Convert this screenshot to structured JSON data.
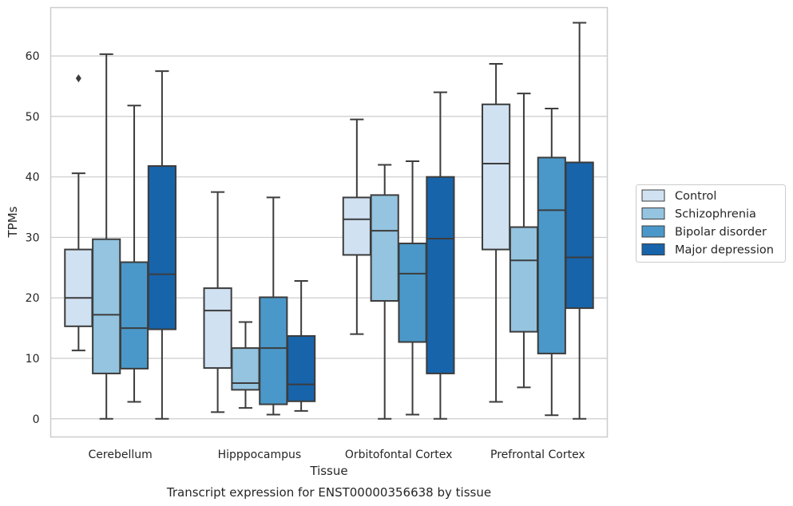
{
  "chart_data": {
    "type": "box",
    "title": "",
    "xlabel": "Tissue",
    "ylabel": "TPMs",
    "caption": "Transcript expression for ENST00000356638 by tissue",
    "categories": [
      "Cerebellum",
      "Hipppocampus",
      "Orbitofontal Cortex",
      "Prefrontal Cortex"
    ],
    "ylim": [
      -3,
      68
    ],
    "yticks": [
      0,
      10,
      20,
      30,
      40,
      50,
      60
    ],
    "grid": true,
    "legend_position": "right",
    "series": [
      {
        "name": "Control",
        "color": "#d0e1f2",
        "boxes": [
          {
            "whislo": 11.3,
            "q1": 15.3,
            "med": 20.0,
            "q3": 28.0,
            "whishi": 40.6,
            "fliers": [
              56.3
            ]
          },
          {
            "whislo": 1.1,
            "q1": 8.4,
            "med": 17.9,
            "q3": 21.6,
            "whishi": 37.5,
            "fliers": []
          },
          {
            "whislo": 14.0,
            "q1": 27.1,
            "med": 33.0,
            "q3": 36.6,
            "whishi": 49.5,
            "fliers": []
          },
          {
            "whislo": 2.8,
            "q1": 28.0,
            "med": 42.2,
            "q3": 52.0,
            "whishi": 58.7,
            "fliers": []
          }
        ]
      },
      {
        "name": "Schizophrenia",
        "color": "#94c4df",
        "boxes": [
          {
            "whislo": 0.0,
            "q1": 7.5,
            "med": 17.2,
            "q3": 29.7,
            "whishi": 60.3,
            "fliers": []
          },
          {
            "whislo": 1.8,
            "q1": 4.8,
            "med": 5.9,
            "q3": 11.7,
            "whishi": 16.0,
            "fliers": []
          },
          {
            "whislo": 0.0,
            "q1": 19.5,
            "med": 31.1,
            "q3": 37.0,
            "whishi": 42.0,
            "fliers": []
          },
          {
            "whislo": 5.2,
            "q1": 14.4,
            "med": 26.2,
            "q3": 31.7,
            "whishi": 53.8,
            "fliers": []
          }
        ]
      },
      {
        "name": "Bipolar disorder",
        "color": "#4a98c9",
        "boxes": [
          {
            "whislo": 2.8,
            "q1": 8.3,
            "med": 15.0,
            "q3": 25.9,
            "whishi": 51.8,
            "fliers": []
          },
          {
            "whislo": 0.7,
            "q1": 2.4,
            "med": 11.7,
            "q3": 20.1,
            "whishi": 36.6,
            "fliers": []
          },
          {
            "whislo": 0.7,
            "q1": 12.7,
            "med": 24.0,
            "q3": 29.0,
            "whishi": 42.6,
            "fliers": []
          },
          {
            "whislo": 0.6,
            "q1": 10.8,
            "med": 34.5,
            "q3": 43.2,
            "whishi": 51.3,
            "fliers": []
          }
        ]
      },
      {
        "name": "Major depression",
        "color": "#1764ab",
        "boxes": [
          {
            "whislo": 0.0,
            "q1": 14.8,
            "med": 23.9,
            "q3": 41.8,
            "whishi": 57.5,
            "fliers": []
          },
          {
            "whislo": 1.3,
            "q1": 2.9,
            "med": 5.7,
            "q3": 13.7,
            "whishi": 22.8,
            "fliers": []
          },
          {
            "whislo": 0.0,
            "q1": 7.5,
            "med": 29.8,
            "q3": 40.0,
            "whishi": 54.0,
            "fliers": []
          },
          {
            "whislo": 0.0,
            "q1": 18.3,
            "med": 26.7,
            "q3": 42.4,
            "whishi": 65.5,
            "fliers": []
          }
        ]
      }
    ]
  }
}
